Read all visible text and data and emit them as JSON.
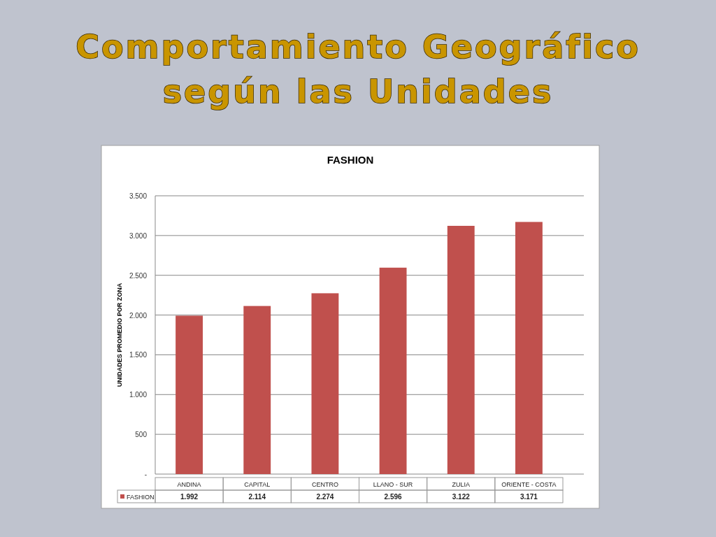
{
  "chart_data": {
    "type": "bar",
    "title": "Comportamiento Geográfico\nsegún las Unidades",
    "subtitle": "FASHION",
    "ylabel": "UNIDADES PROMEDIO POR ZONA",
    "categories": [
      "ANDINA",
      "CAPITAL",
      "CENTRO",
      "LLANO - SUR",
      "ZULIA",
      "ORIENTE  - COSTA"
    ],
    "series": [
      {
        "name": "FASHION",
        "color": "#c0504d",
        "values": [
          1992,
          2114,
          2274,
          2596,
          3122,
          3171
        ],
        "value_labels": [
          "1.992",
          "2.114",
          "2.274",
          "2.596",
          "3.122",
          "3.171"
        ]
      }
    ],
    "ylim": [
      0,
      3500
    ],
    "yticks": [
      {
        "value": 0,
        "label": "-"
      },
      {
        "value": 500,
        "label": "500"
      },
      {
        "value": 1000,
        "label": "1.000"
      },
      {
        "value": 1500,
        "label": "1.500"
      },
      {
        "value": 2000,
        "label": "2.000"
      },
      {
        "value": 2500,
        "label": "2.500"
      },
      {
        "value": 3000,
        "label": "3.000"
      },
      {
        "value": 3500,
        "label": "3.500"
      }
    ],
    "grid": "y",
    "legend": "bottom left"
  }
}
